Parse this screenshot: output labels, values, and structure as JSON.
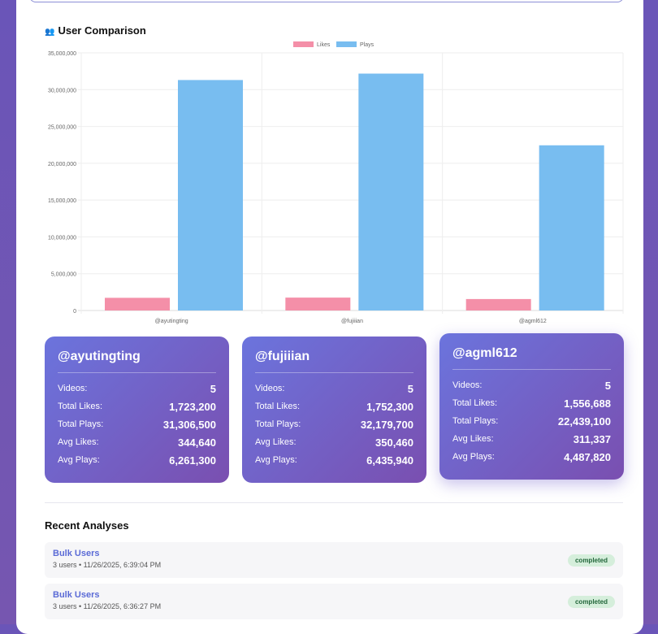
{
  "section_title": "User Comparison",
  "section_icon": "👥",
  "chart_data": {
    "type": "bar",
    "categories": [
      "@ayutingting",
      "@fujiiian",
      "@agml612"
    ],
    "series": [
      {
        "name": "Likes",
        "color": "#f48fa8",
        "values": [
          1723200,
          1752300,
          1556688
        ]
      },
      {
        "name": "Plays",
        "color": "#78bdf0",
        "values": [
          31306500,
          32179700,
          22439100
        ]
      }
    ],
    "ylim": [
      0,
      35000000
    ],
    "yticks": [
      "0",
      "5,000,000",
      "10,000,000",
      "15,000,000",
      "20,000,000",
      "25,000,000",
      "30,000,000",
      "35,000,000"
    ],
    "legend": "top-center",
    "grid": true
  },
  "cards": [
    {
      "name": "@ayutingting",
      "stats": [
        [
          "Videos:",
          "5"
        ],
        [
          "Total Likes:",
          "1,723,200"
        ],
        [
          "Total Plays:",
          "31,306,500"
        ],
        [
          "Avg Likes:",
          "344,640"
        ],
        [
          "Avg Plays:",
          "6,261,300"
        ]
      ]
    },
    {
      "name": "@fujiiian",
      "stats": [
        [
          "Videos:",
          "5"
        ],
        [
          "Total Likes:",
          "1,752,300"
        ],
        [
          "Total Plays:",
          "32,179,700"
        ],
        [
          "Avg Likes:",
          "350,460"
        ],
        [
          "Avg Plays:",
          "6,435,940"
        ]
      ]
    },
    {
      "name": "@agml612",
      "stats": [
        [
          "Videos:",
          "5"
        ],
        [
          "Total Likes:",
          "1,556,688"
        ],
        [
          "Total Plays:",
          "22,439,100"
        ],
        [
          "Avg Likes:",
          "311,337"
        ],
        [
          "Avg Plays:",
          "4,487,820"
        ]
      ]
    }
  ],
  "recent": {
    "title": "Recent Analyses",
    "items": [
      {
        "title": "Bulk Users",
        "meta": "3 users • 11/26/2025, 6:39:04 PM",
        "status": "completed"
      },
      {
        "title": "Bulk Users",
        "meta": "3 users • 11/26/2025, 6:36:27 PM",
        "status": "completed"
      }
    ]
  }
}
